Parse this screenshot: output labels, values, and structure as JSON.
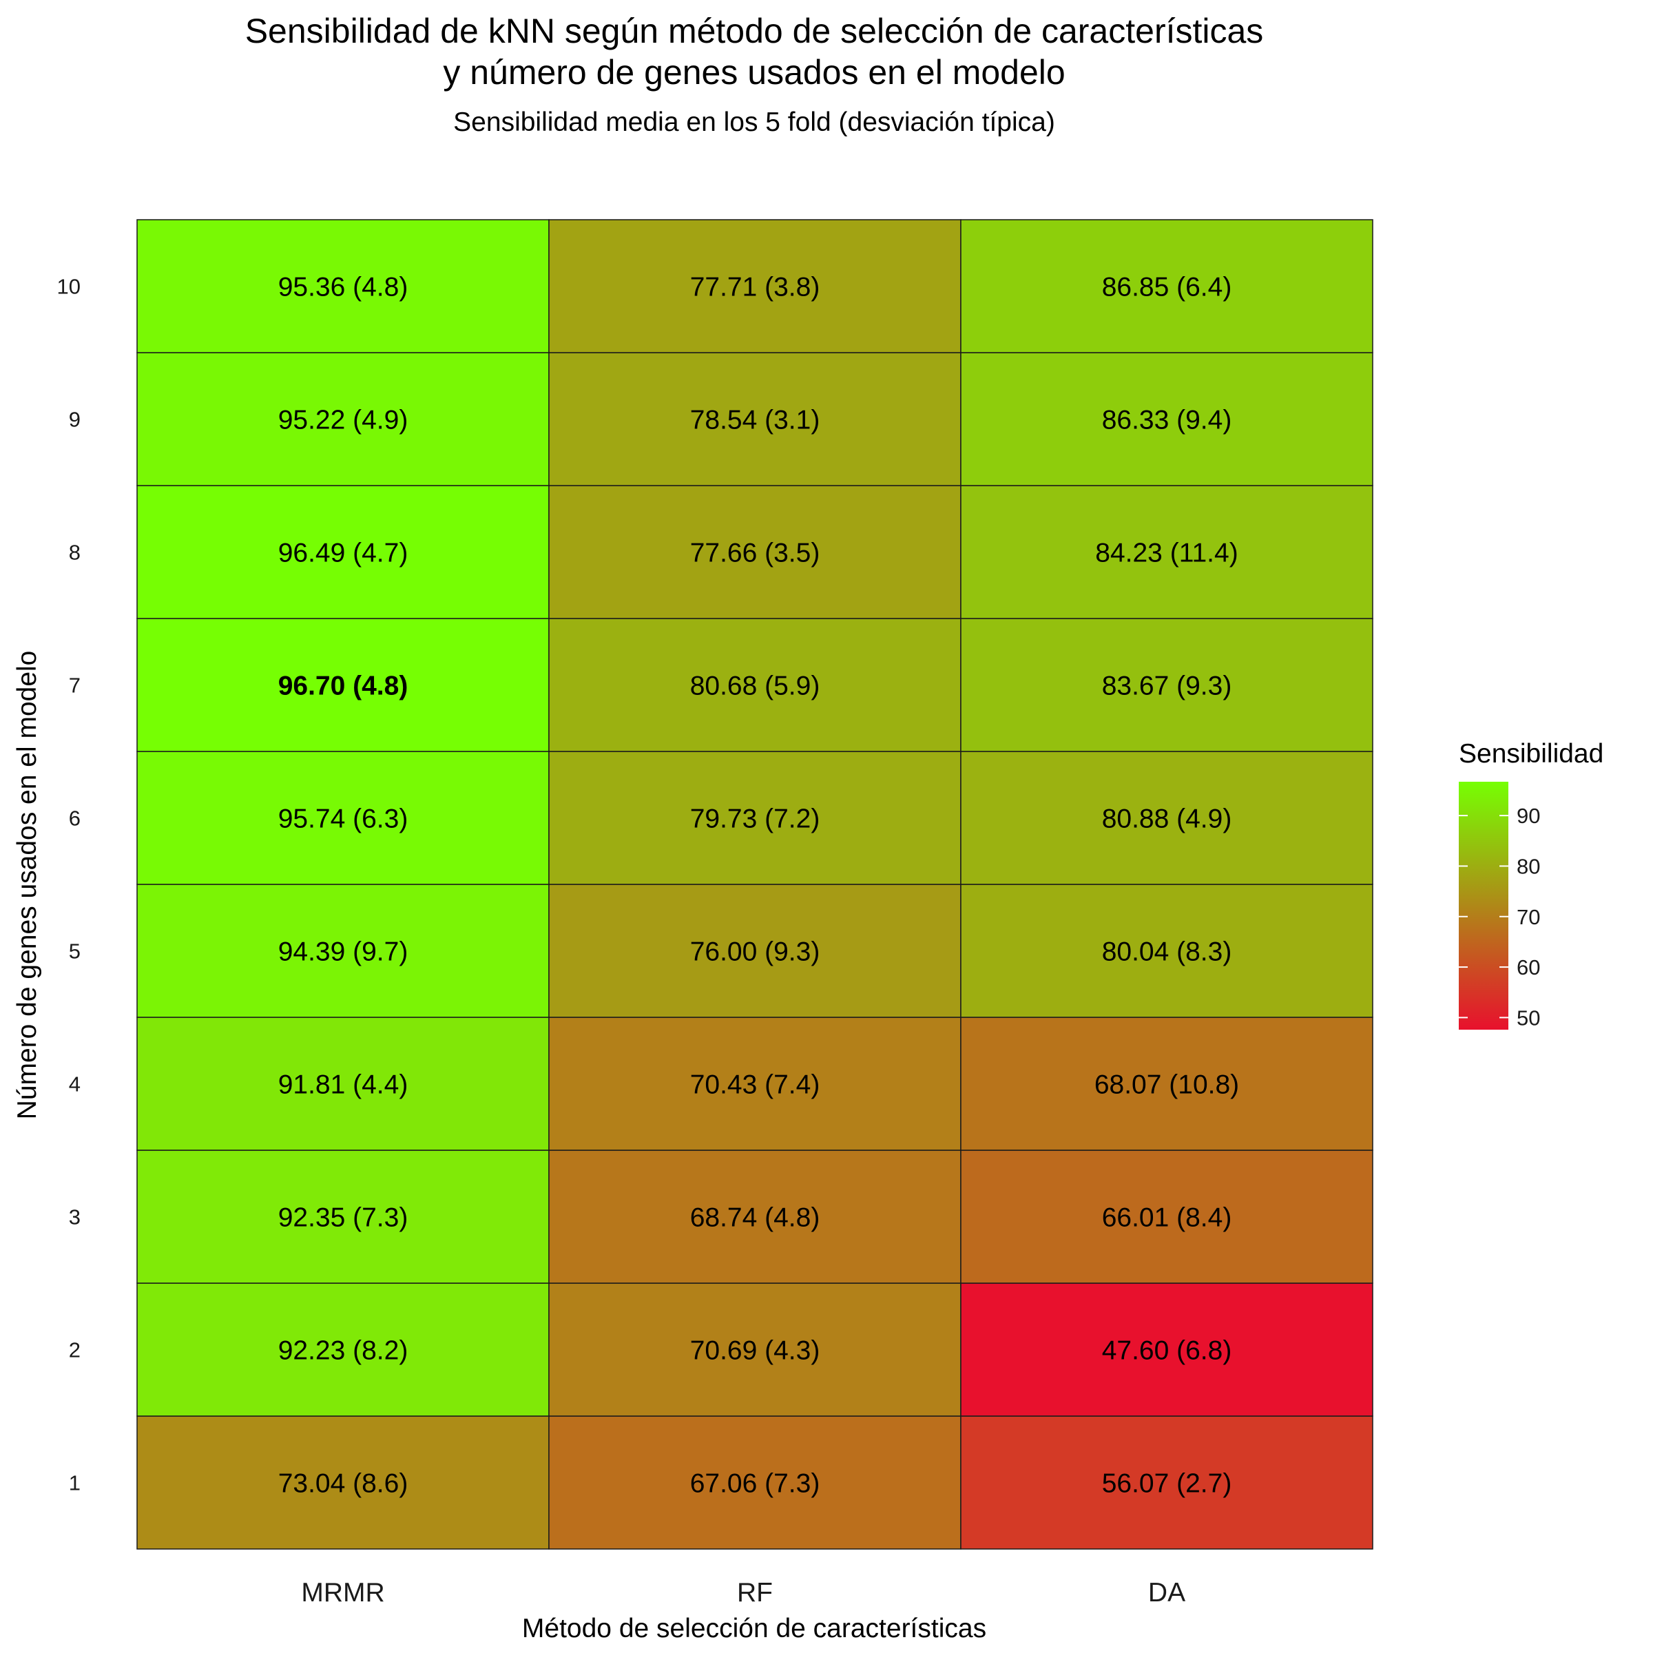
{
  "chart_data": {
    "type": "heatmap",
    "title_lines": [
      "Sensibilidad de kNN según método de selección de características",
      "y número de genes usados en el modelo"
    ],
    "subtitle": "Sensibilidad media en los 5 fold (desviación típica)",
    "xlabel": "Método de selección de características",
    "ylabel": "Número de genes usados en el modelo",
    "x_categories": [
      "MRMR",
      "RF",
      "DA"
    ],
    "y_categories": [
      "1",
      "2",
      "3",
      "4",
      "5",
      "6",
      "7",
      "8",
      "9",
      "10"
    ],
    "series": [
      {
        "name": "MRMR",
        "values": [
          73.04,
          92.23,
          92.35,
          91.81,
          94.39,
          95.74,
          96.7,
          96.49,
          95.22,
          95.36
        ],
        "sd": [
          8.6,
          8.2,
          7.3,
          4.4,
          9.7,
          6.3,
          4.8,
          4.7,
          4.9,
          4.8
        ],
        "labels": [
          "73.04 (8.6)",
          "92.23 (8.2)",
          "92.35 (7.3)",
          "91.81 (4.4)",
          "94.39 (9.7)",
          "95.74 (6.3)",
          "96.70 (4.8)",
          "96.49 (4.7)",
          "95.22 (4.9)",
          "95.36 (4.8)"
        ]
      },
      {
        "name": "RF",
        "values": [
          67.06,
          70.69,
          68.74,
          70.43,
          76.0,
          79.73,
          80.68,
          77.66,
          78.54,
          77.71
        ],
        "sd": [
          7.3,
          4.3,
          4.8,
          7.4,
          9.3,
          7.2,
          5.9,
          3.5,
          3.1,
          3.8
        ],
        "labels": [
          "67.06 (7.3)",
          "70.69 (4.3)",
          "68.74 (4.8)",
          "70.43 (7.4)",
          "76.00 (9.3)",
          "79.73 (7.2)",
          "80.68 (5.9)",
          "77.66 (3.5)",
          "78.54 (3.1)",
          "77.71 (3.8)"
        ]
      },
      {
        "name": "DA",
        "values": [
          56.07,
          47.6,
          66.01,
          68.07,
          80.04,
          80.88,
          83.67,
          84.23,
          86.33,
          86.85
        ],
        "sd": [
          2.7,
          6.8,
          8.4,
          10.8,
          8.3,
          4.9,
          9.3,
          11.4,
          9.4,
          6.4
        ],
        "labels": [
          "56.07 (2.7)",
          "47.60 (6.8)",
          "66.01 (8.4)",
          "68.07 (10.8)",
          "80.04 (8.3)",
          "80.88 (4.9)",
          "83.67 (9.3)",
          "84.23 (11.4)",
          "86.33 (9.4)",
          "86.85 (6.4)"
        ]
      }
    ],
    "highlight": {
      "series": "MRMR",
      "y": "7"
    },
    "color_scale": {
      "low": "#e8112d",
      "high": "#76ff03",
      "min": 47.6,
      "max": 96.7
    },
    "legend": {
      "title": "Sensibilidad",
      "ticks": [
        50,
        60,
        70,
        80,
        90
      ],
      "placement": "right"
    },
    "grid": false
  }
}
